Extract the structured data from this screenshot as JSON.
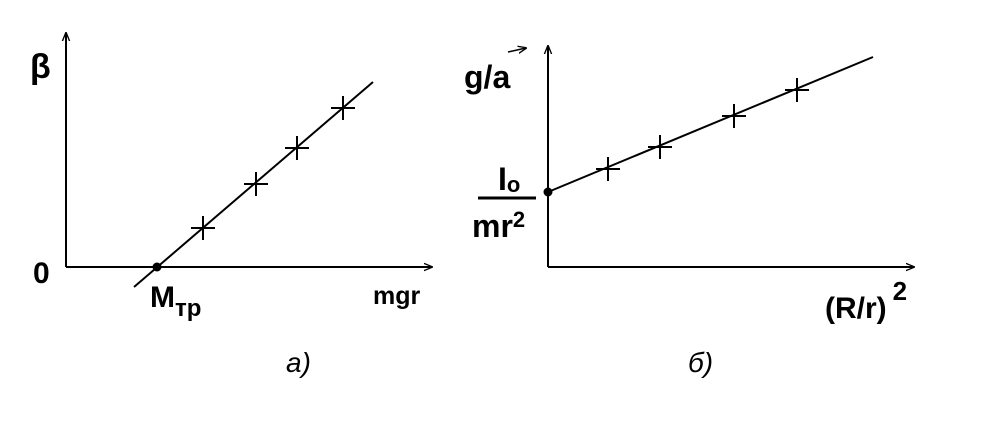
{
  "panels": [
    {
      "id": "a",
      "y_label": "β",
      "origin_label": "0",
      "x_label": "mgr",
      "intercept_label_main": "M",
      "intercept_label_sub": "тр",
      "caption": "а)",
      "points": 4
    },
    {
      "id": "b",
      "y_label_prefix": "g/",
      "y_label_vec": "a",
      "intercept_num": "I",
      "intercept_num_sub": "o",
      "intercept_den": "mr",
      "intercept_den_sup": "2",
      "x_label": "(R/r)",
      "x_label_sup": "2",
      "caption": "б)",
      "points": 4
    }
  ]
}
